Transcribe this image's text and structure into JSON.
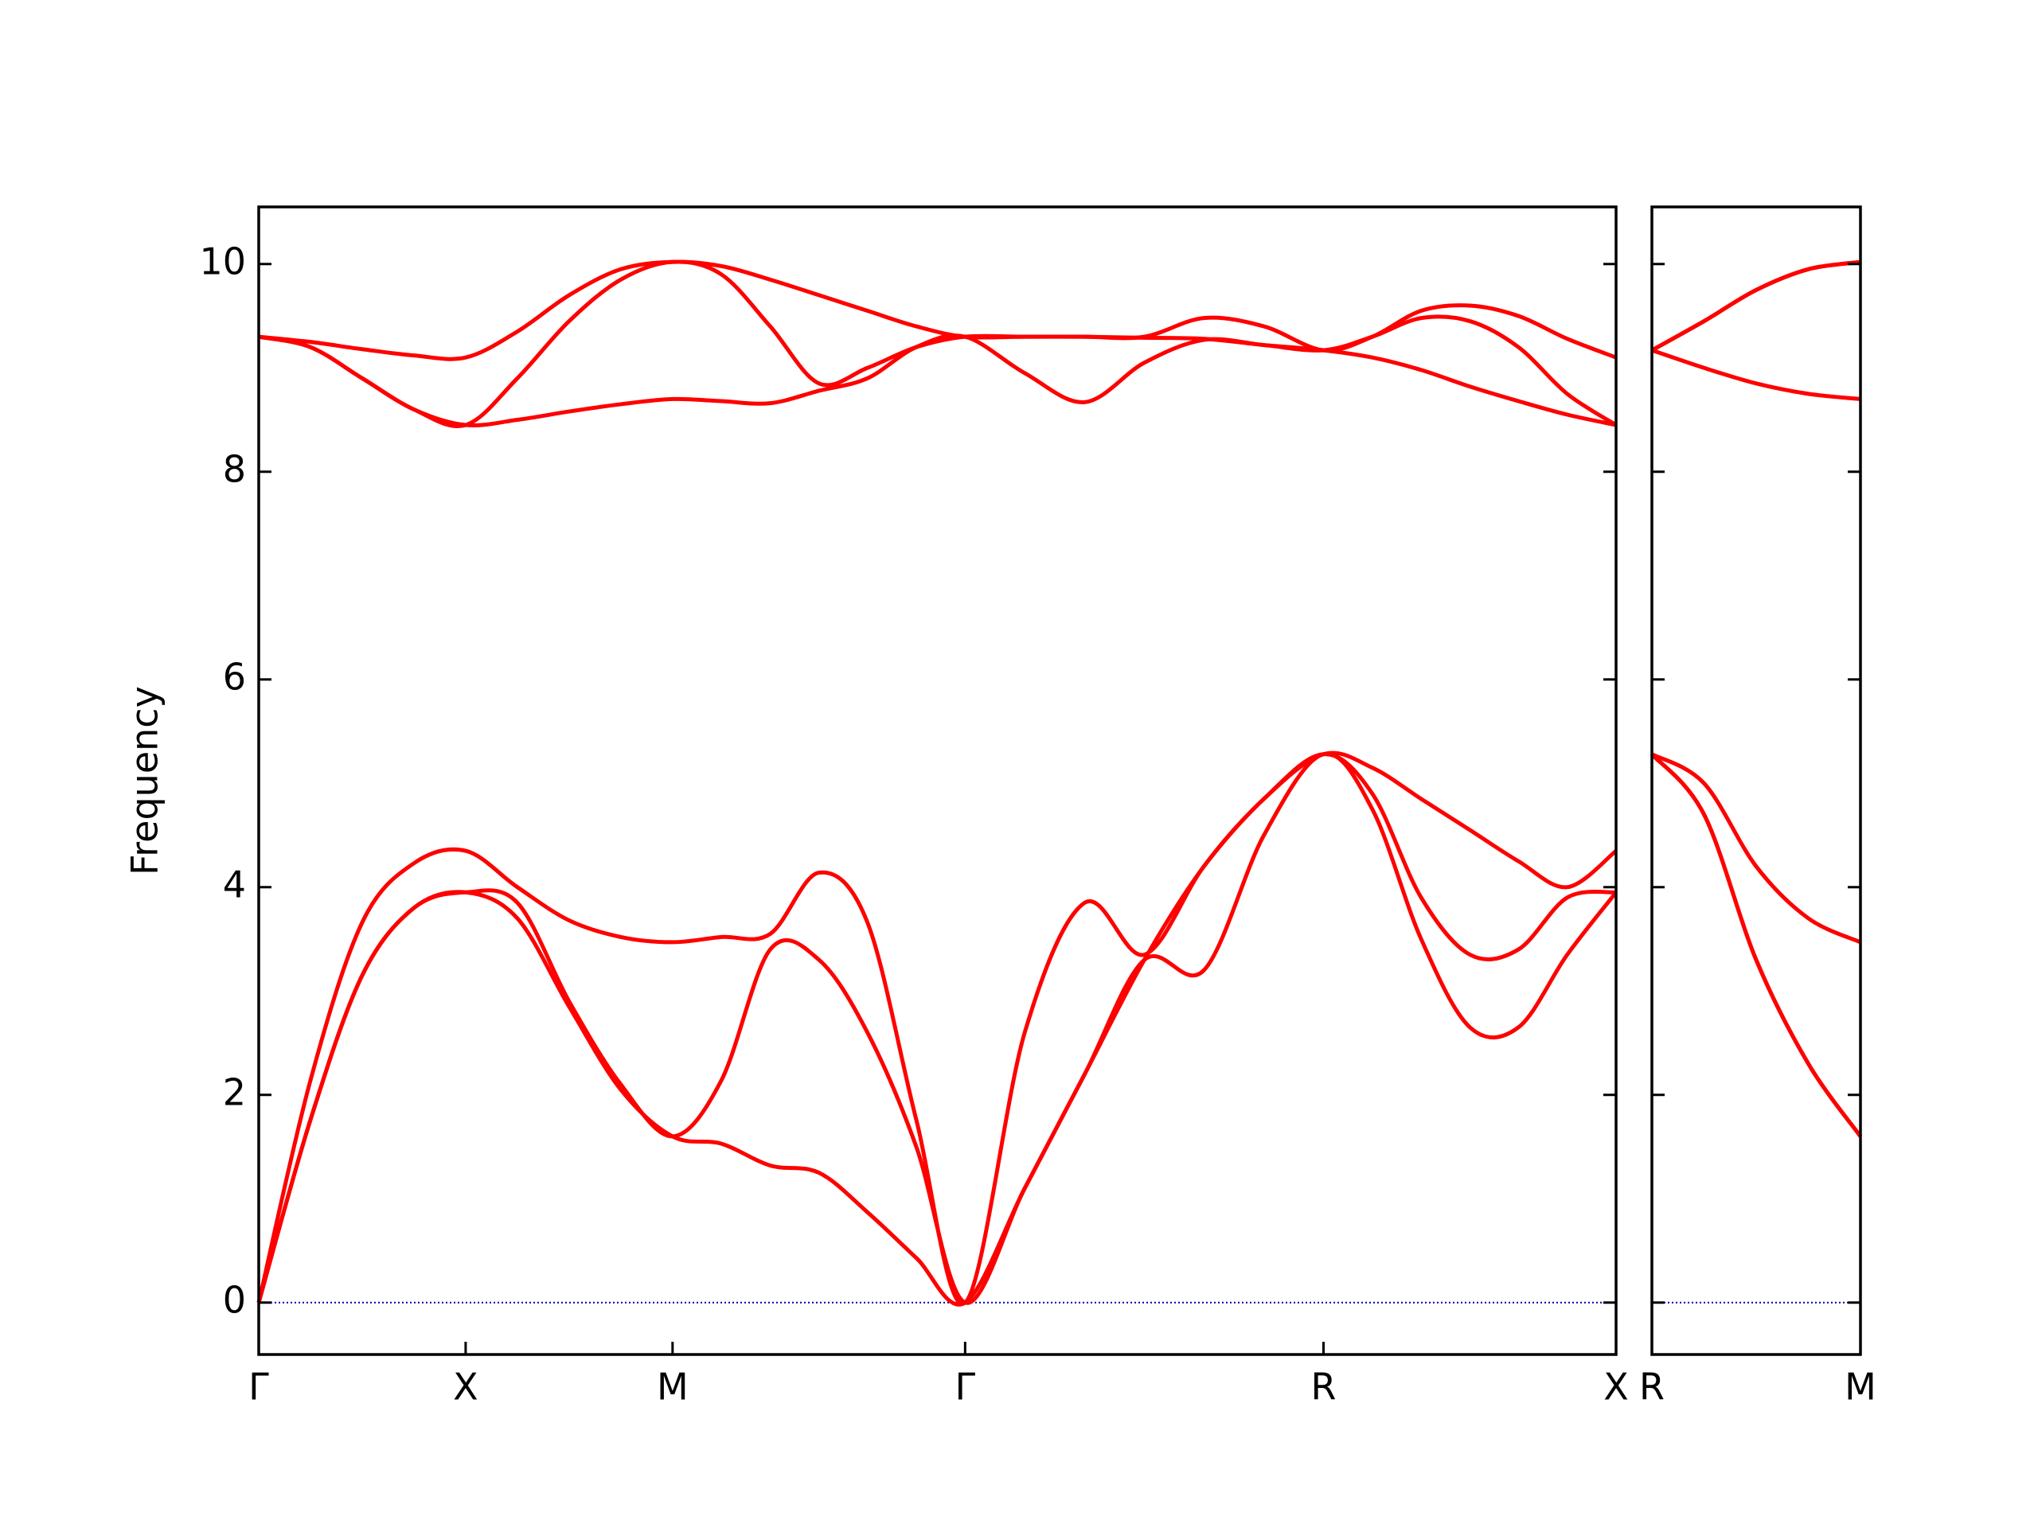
{
  "chart_data": [
    {
      "type": "line",
      "ylabel": "Frequency",
      "xlim": [
        0,
        3.28
      ],
      "ylim": [
        -0.5,
        10.55
      ],
      "xticks": [
        {
          "value": 0,
          "label": "Γ"
        },
        {
          "value": 0.5,
          "label": "X"
        },
        {
          "value": 1,
          "label": "M"
        },
        {
          "value": 1.707,
          "label": "Γ"
        },
        {
          "value": 2.573,
          "label": "R"
        },
        {
          "value": 3.28,
          "label": "X"
        }
      ],
      "yticks": [
        0,
        2,
        4,
        6,
        8,
        10
      ],
      "ytick_labels": true,
      "zero_line_color": "#0000aa",
      "x": [
        0,
        0.125,
        0.25,
        0.375,
        0.5,
        0.625,
        0.75,
        0.875,
        1,
        1.118,
        1.236,
        1.354,
        1.471,
        1.589,
        1.707,
        1.851,
        1.996,
        2.14,
        2.284,
        2.429,
        2.573,
        2.691,
        2.809,
        2.927,
        3.044,
        3.162,
        3.28
      ],
      "series": [
        {
          "color": "#ff0000",
          "values": [
            0,
            1.76,
            3.15,
            3.8,
            3.95,
            3.7,
            2.85,
            2.05,
            1.6,
            1.53,
            1.32,
            1.25,
            0.87,
            0.43,
            0,
            1.1,
            2.2,
            3.3,
            3.2,
            4.5,
            5.28,
            4.75,
            3.5,
            2.65,
            2.65,
            3.35,
            3.95
          ]
        },
        {
          "color": "#ff0000",
          "values": [
            0,
            1.76,
            3.15,
            3.8,
            3.95,
            3.85,
            2.9,
            2.1,
            1.6,
            2.14,
            3.4,
            3.3,
            2.6,
            1.5,
            0,
            1.1,
            2.2,
            3.3,
            4.2,
            4.85,
            5.28,
            4.9,
            3.9,
            3.35,
            3.4,
            3.9,
            3.95
          ]
        },
        {
          "color": "#ff0000",
          "values": [
            0,
            2.14,
            3.66,
            4.23,
            4.35,
            4.0,
            3.68,
            3.52,
            3.47,
            3.52,
            3.55,
            4.14,
            3.66,
            1.76,
            0,
            2.6,
            3.85,
            3.35,
            4.2,
            4.85,
            5.28,
            5.15,
            4.85,
            4.55,
            4.25,
            4.0,
            4.35
          ]
        },
        {
          "color": "#ff0000",
          "values": [
            9.3,
            9.2,
            8.9,
            8.6,
            8.45,
            8.5,
            8.58,
            8.65,
            8.7,
            8.68,
            8.66,
            8.78,
            8.9,
            9.2,
            9.3,
            8.95,
            8.67,
            9.05,
            9.27,
            9.22,
            9.17,
            9.1,
            8.98,
            8.82,
            8.68,
            8.55,
            8.45
          ]
        },
        {
          "color": "#ff0000",
          "values": [
            9.3,
            9.2,
            8.9,
            8.6,
            8.45,
            8.9,
            9.45,
            9.85,
            10.02,
            9.9,
            9.4,
            8.85,
            9.0,
            9.2,
            9.3,
            9.3,
            9.3,
            9.29,
            9.28,
            9.22,
            9.17,
            9.3,
            9.48,
            9.45,
            9.2,
            8.75,
            8.45
          ]
        },
        {
          "color": "#ff0000",
          "values": [
            9.3,
            9.25,
            9.18,
            9.12,
            9.1,
            9.35,
            9.7,
            9.95,
            10.02,
            9.98,
            9.85,
            9.7,
            9.55,
            9.4,
            9.3,
            9.3,
            9.3,
            9.3,
            9.48,
            9.4,
            9.17,
            9.3,
            9.55,
            9.6,
            9.5,
            9.28,
            9.1
          ]
        }
      ]
    },
    {
      "type": "line",
      "xlim": [
        3.28,
        3.78
      ],
      "ylim": [
        -0.5,
        10.55
      ],
      "xticks": [
        {
          "value": 3.28,
          "label": "R"
        },
        {
          "value": 3.78,
          "label": "M"
        }
      ],
      "yticks": [
        0,
        2,
        4,
        6,
        8,
        10
      ],
      "ytick_labels": false,
      "zero_line_color": "#0000aa",
      "x": [
        3.28,
        3.405,
        3.53,
        3.655,
        3.78
      ],
      "series": [
        {
          "color": "#ff0000",
          "values": [
            5.28,
            4.7,
            3.3,
            2.3,
            1.6
          ]
        },
        {
          "color": "#ff0000",
          "values": [
            5.28,
            4.7,
            3.3,
            2.3,
            1.6
          ]
        },
        {
          "color": "#ff0000",
          "values": [
            5.28,
            5.0,
            4.2,
            3.7,
            3.47
          ]
        },
        {
          "color": "#ff0000",
          "values": [
            9.17,
            9.0,
            8.85,
            8.75,
            8.7
          ]
        },
        {
          "color": "#ff0000",
          "values": [
            9.17,
            9.45,
            9.75,
            9.95,
            10.02
          ]
        },
        {
          "color": "#ff0000",
          "values": [
            9.17,
            9.45,
            9.75,
            9.95,
            10.02
          ]
        }
      ]
    }
  ]
}
